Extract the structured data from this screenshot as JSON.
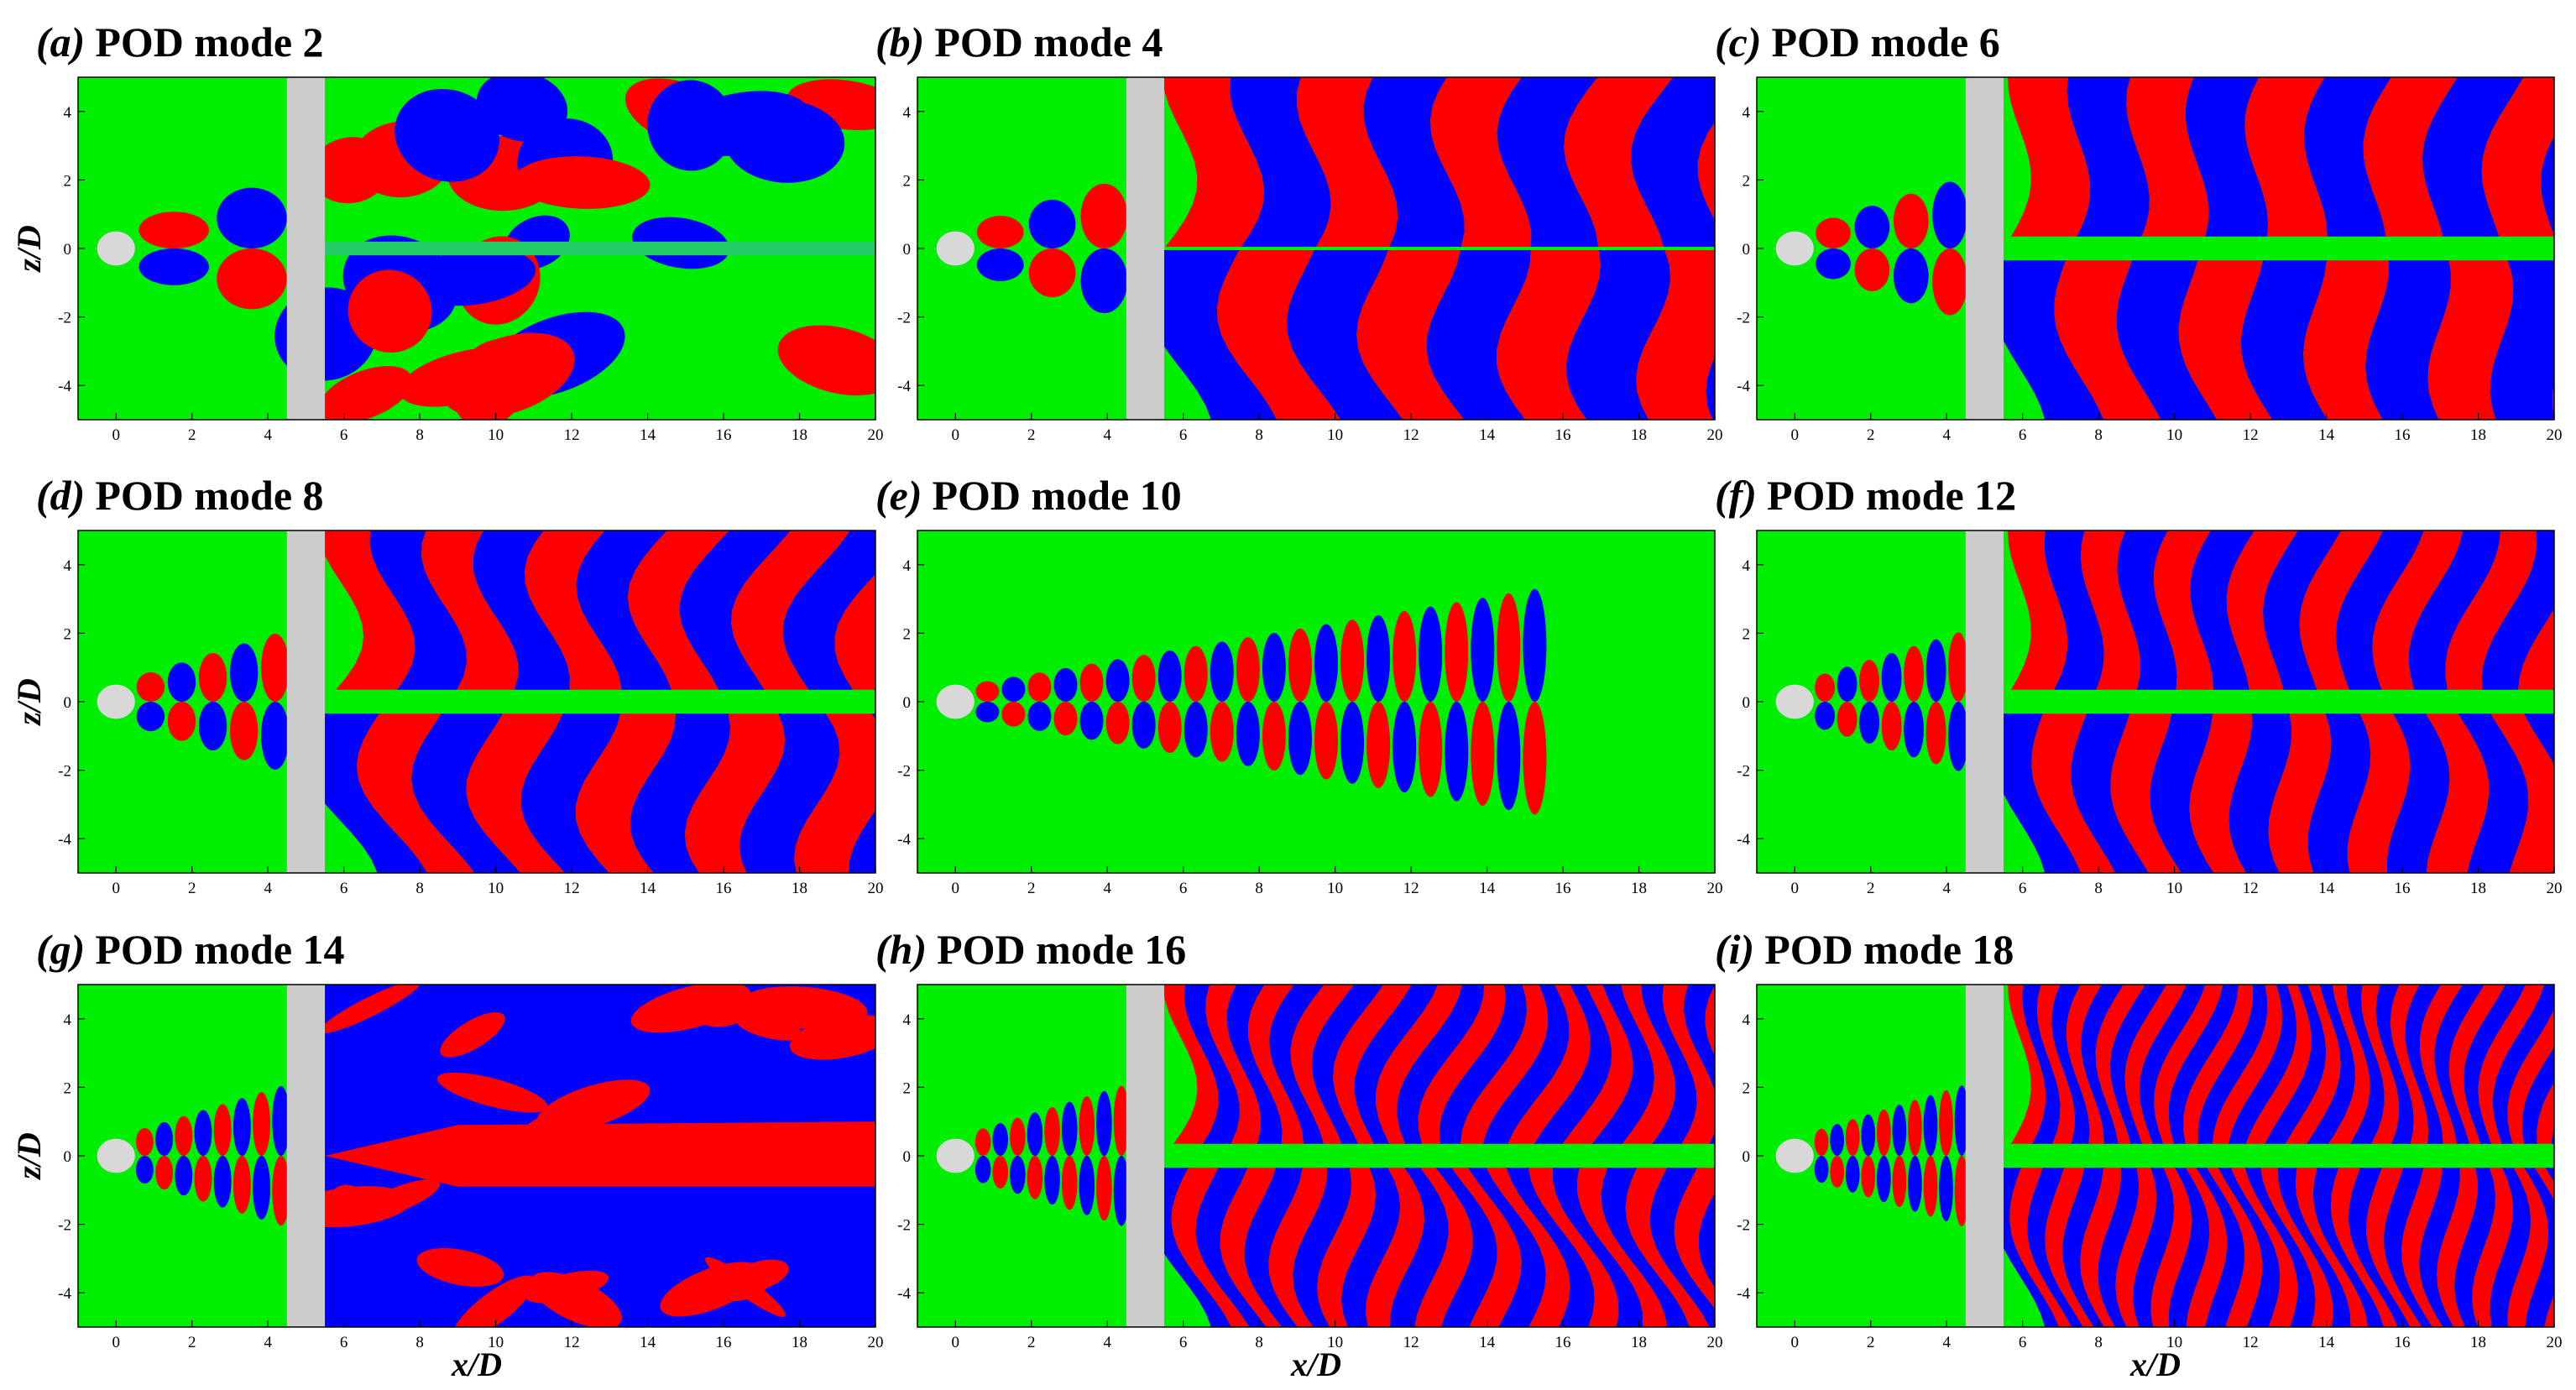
{
  "figure": {
    "panels": [
      {
        "label": "(a)",
        "letter": "a",
        "title": "POD mode 2",
        "mode": 2,
        "ylabel": "z/D",
        "xlabel": "",
        "has_obstacle": true
      },
      {
        "label": "(b)",
        "letter": "b",
        "title": "POD mode 4",
        "mode": 4,
        "ylabel": "",
        "xlabel": "",
        "has_obstacle": true
      },
      {
        "label": "(c)",
        "letter": "c",
        "title": "POD mode 6",
        "mode": 6,
        "ylabel": "",
        "xlabel": "",
        "has_obstacle": true
      },
      {
        "label": "(d)",
        "letter": "d",
        "title": "POD mode 8",
        "mode": 8,
        "ylabel": "z/D",
        "xlabel": "",
        "has_obstacle": true
      },
      {
        "label": "(e)",
        "letter": "e",
        "title": "POD mode 10",
        "mode": 10,
        "ylabel": "",
        "xlabel": "",
        "has_obstacle": false
      },
      {
        "label": "(f)",
        "letter": "f",
        "title": "POD mode 12",
        "mode": 12,
        "ylabel": "",
        "xlabel": "",
        "has_obstacle": true
      },
      {
        "label": "(g)",
        "letter": "g",
        "title": "POD mode 14",
        "mode": 14,
        "ylabel": "z/D",
        "xlabel": "x/D",
        "has_obstacle": true
      },
      {
        "label": "(h)",
        "letter": "h",
        "title": "POD mode 16",
        "mode": 16,
        "ylabel": "",
        "xlabel": "x/D",
        "has_obstacle": true
      },
      {
        "label": "(i)",
        "letter": "i",
        "title": "POD mode 18",
        "mode": 18,
        "ylabel": "",
        "xlabel": "x/D",
        "has_obstacle": true
      }
    ],
    "x_ticks": [
      "0",
      "2",
      "4",
      "6",
      "8",
      "10",
      "12",
      "14",
      "16",
      "18",
      "20"
    ],
    "y_ticks": [
      "4",
      "2",
      "0",
      "-2",
      "-4"
    ],
    "xlim": [
      -1,
      20
    ],
    "ylim": [
      -5,
      5
    ],
    "obstacle_x": [
      4.5,
      5.5
    ],
    "cylinder_diameter": 1,
    "colors": {
      "positive": "#ff0000",
      "negative": "#0000ff",
      "background": "#00ee00",
      "obstacle": "#cccccc",
      "cylinder": "#d8d8d8"
    }
  }
}
